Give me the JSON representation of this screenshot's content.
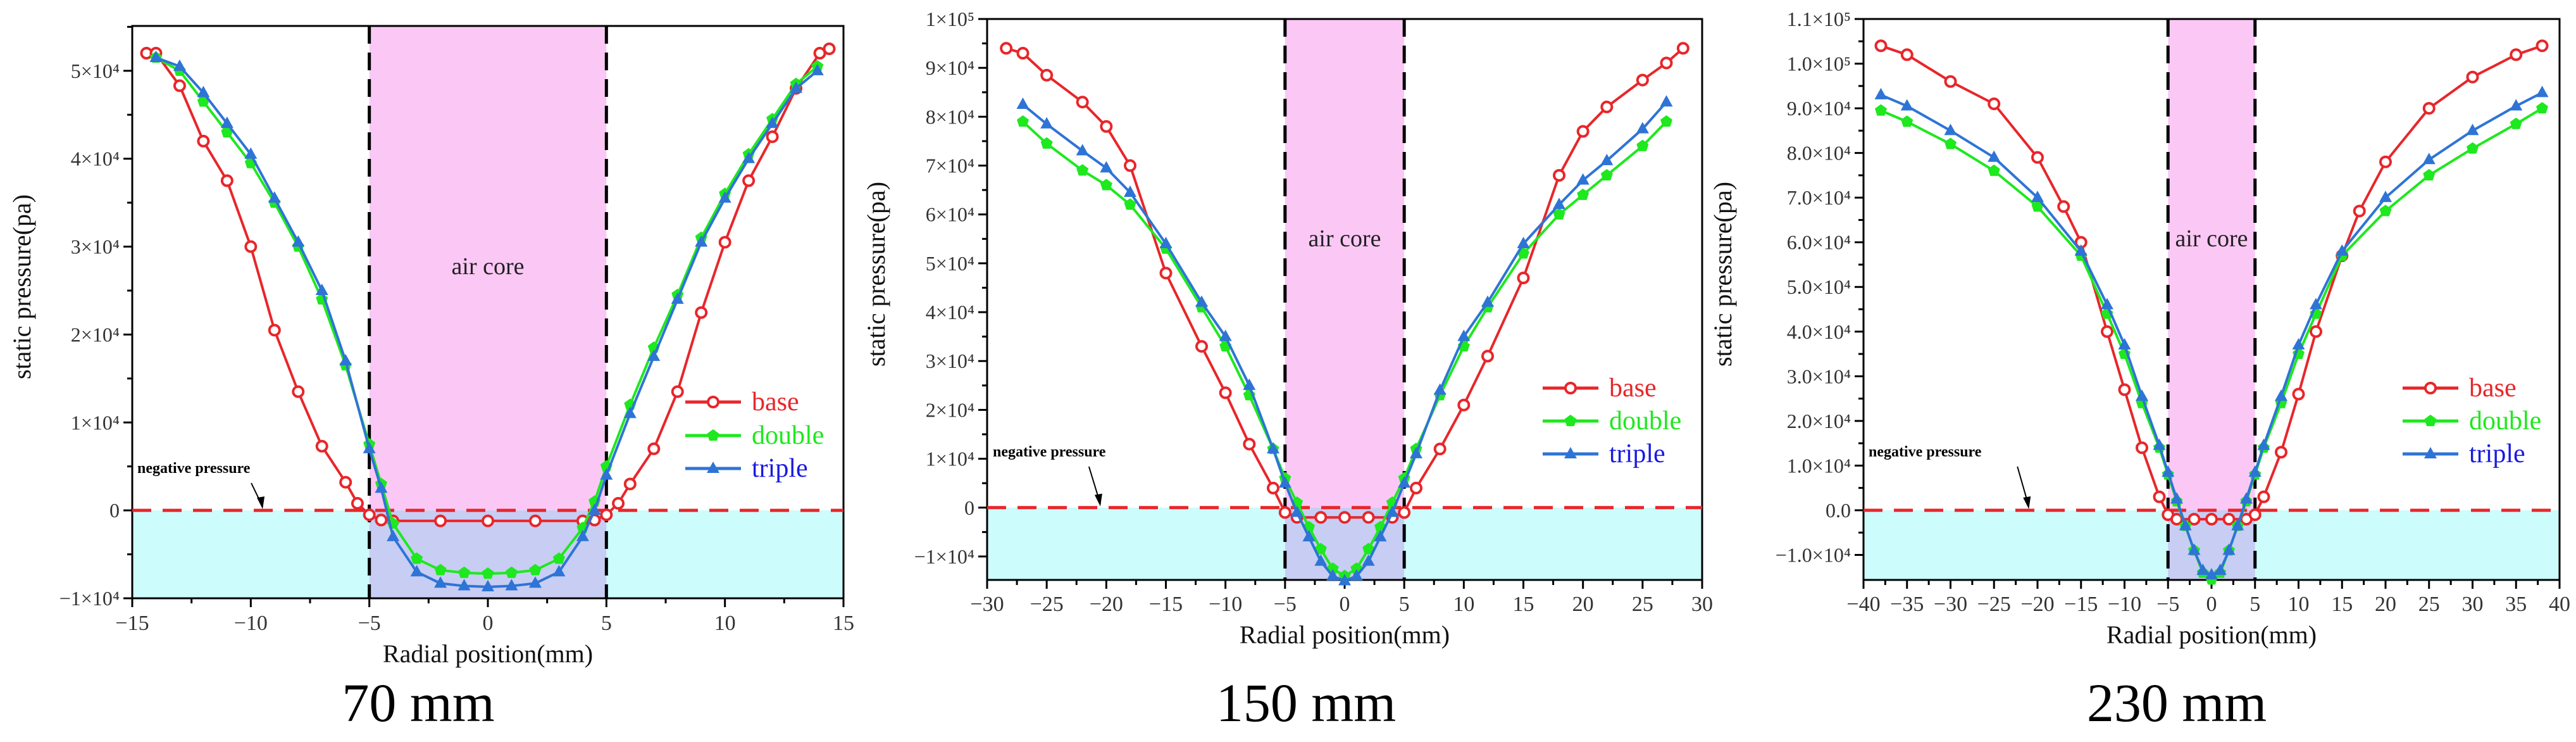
{
  "colors": {
    "base": "#e8262a",
    "double": "#1ee81e",
    "triple": "#2e74d6",
    "triple_label": "#1a1ae0",
    "air_core_fill": "#fbc8f6",
    "negative_fill": "#ccfcfc",
    "overlap_fill": "#c8cdf4",
    "zero_line": "#e8262a"
  },
  "captions": [
    "70 mm",
    "150 mm",
    "230 mm"
  ],
  "chart_data": [
    {
      "type": "line",
      "xlabel": "Radial position(mm)",
      "ylabel": "static pressure(pa)",
      "xlim": [
        -15,
        15
      ],
      "ylim": [
        -10000,
        55100
      ],
      "xticks": [
        -15,
        -10,
        -5,
        0,
        5,
        10,
        15
      ],
      "xtick_labels": [
        "−15",
        "−10",
        "−5",
        "0",
        "5",
        "10",
        "15"
      ],
      "yticks": [
        -10000,
        0,
        10000,
        20000,
        30000,
        40000,
        50000
      ],
      "ytick_labels": [
        "−1×10⁴",
        "0",
        "1×10⁴",
        "2×10⁴",
        "3×10⁴",
        "4×10⁴",
        "5×10⁴"
      ],
      "air_core": {
        "label": "air core",
        "x_range": [
          -5,
          5
        ]
      },
      "negative_pressure": {
        "label": "negative pressure",
        "arrow_x": -9.5
      },
      "legend": "right",
      "legend_labels": [
        "base",
        "double",
        "triple"
      ],
      "series": [
        {
          "name": "base",
          "marker": "circle",
          "x": [
            -14.4,
            -14,
            -13,
            -12,
            -11,
            -10,
            -9,
            -8,
            -7,
            -6,
            -5.5,
            -5,
            -4.5,
            -4,
            -2,
            0,
            2,
            4,
            4.5,
            5,
            5.5,
            6,
            7,
            8,
            9,
            10,
            11,
            12,
            13,
            14,
            14.4
          ],
          "y": [
            52000,
            52000,
            48300,
            42000,
            37500,
            30000,
            20500,
            13500,
            7300,
            3200,
            800,
            -500,
            -1100,
            -1200,
            -1200,
            -1200,
            -1200,
            -1200,
            -1100,
            -500,
            800,
            3000,
            7000,
            13500,
            22500,
            30500,
            37500,
            42500,
            48000,
            52000,
            52500
          ]
        },
        {
          "name": "double",
          "marker": "pentagon",
          "x": [
            -14,
            -13,
            -12,
            -11,
            -10,
            -9,
            -8,
            -7,
            -6,
            -5,
            -4.5,
            -4,
            -3,
            -2,
            -1,
            0,
            1,
            2,
            3,
            4,
            4.5,
            5,
            6,
            7,
            8,
            9,
            10,
            11,
            12,
            13,
            13.9
          ],
          "y": [
            51500,
            50000,
            46500,
            43000,
            39500,
            35000,
            30000,
            24000,
            16500,
            7500,
            3000,
            -1500,
            -5500,
            -6800,
            -7100,
            -7200,
            -7100,
            -6800,
            -5500,
            -2000,
            1000,
            5000,
            12000,
            18500,
            24500,
            31000,
            36000,
            40500,
            44500,
            48500,
            50500
          ]
        },
        {
          "name": "triple",
          "marker": "triangle",
          "x": [
            -14,
            -13,
            -12,
            -11,
            -10,
            -9,
            -8,
            -7,
            -6,
            -5,
            -4.5,
            -4,
            -3,
            -2,
            -1,
            0,
            1,
            2,
            3,
            4,
            4.5,
            5,
            6,
            7,
            8,
            9,
            10,
            11,
            12,
            13,
            13.9
          ],
          "y": [
            51500,
            50500,
            47500,
            44000,
            40500,
            35500,
            30500,
            25000,
            17000,
            7000,
            2500,
            -3000,
            -7000,
            -8300,
            -8600,
            -8700,
            -8600,
            -8300,
            -7000,
            -3000,
            0,
            4000,
            11000,
            17500,
            24000,
            30500,
            35500,
            40000,
            44000,
            48000,
            50000
          ]
        }
      ]
    },
    {
      "type": "line",
      "xlabel": "Radial position(mm)",
      "ylabel": "static pressure(pa)",
      "xlim": [
        -30,
        30
      ],
      "ylim": [
        -14800,
        100000
      ],
      "xticks": [
        -30,
        -25,
        -20,
        -15,
        -10,
        -5,
        0,
        5,
        10,
        15,
        20,
        25,
        30
      ],
      "xtick_labels": [
        "−30",
        "−25",
        "−20",
        "−15",
        "−10",
        "−5",
        "0",
        "5",
        "10",
        "15",
        "20",
        "25",
        "30"
      ],
      "yticks": [
        -10000,
        0,
        10000,
        20000,
        30000,
        40000,
        50000,
        60000,
        70000,
        80000,
        90000,
        100000
      ],
      "ytick_labels": [
        "−1×10⁴",
        "0",
        "1×10⁴",
        "2×10⁴",
        "3×10⁴",
        "4×10⁴",
        "5×10⁴",
        "6×10⁴",
        "7×10⁴",
        "8×10⁴",
        "9×10⁴",
        "1×10⁵"
      ],
      "air_core": {
        "label": "air core",
        "x_range": [
          -5,
          5
        ]
      },
      "negative_pressure": {
        "label": "negative pressure",
        "arrow_x": -20.5
      },
      "legend": "right",
      "legend_labels": [
        "base",
        "double",
        "triple"
      ],
      "series": [
        {
          "name": "base",
          "marker": "circle",
          "x": [
            -28.4,
            -27,
            -25,
            -22,
            -20,
            -18,
            -15,
            -12,
            -10,
            -8,
            -6,
            -5,
            -4,
            -2,
            0,
            2,
            4,
            5,
            6,
            8,
            10,
            12,
            15,
            18,
            20,
            22,
            25,
            27,
            28.4
          ],
          "y": [
            94000,
            93000,
            88500,
            83000,
            78000,
            70000,
            48000,
            33000,
            23500,
            13000,
            4000,
            -1000,
            -2000,
            -2000,
            -2000,
            -2000,
            -2000,
            -1000,
            4000,
            12000,
            21000,
            31000,
            47000,
            68000,
            77000,
            82000,
            87500,
            91000,
            94000
          ]
        },
        {
          "name": "double",
          "marker": "pentagon",
          "x": [
            -27,
            -25,
            -22,
            -20,
            -18,
            -15,
            -12,
            -10,
            -8,
            -6,
            -5,
            -4,
            -3,
            -2,
            -1,
            0,
            1,
            2,
            3,
            4,
            5,
            6,
            8,
            10,
            12,
            15,
            18,
            20,
            22,
            25,
            27
          ],
          "y": [
            79000,
            74500,
            69000,
            66000,
            62000,
            53000,
            41000,
            33000,
            23000,
            12000,
            6000,
            1000,
            -4000,
            -8500,
            -12500,
            -14000,
            -12500,
            -8500,
            -4000,
            1000,
            6000,
            12000,
            23000,
            33000,
            41000,
            52000,
            60000,
            64000,
            68000,
            74000,
            79000
          ]
        },
        {
          "name": "triple",
          "marker": "triangle",
          "x": [
            -27,
            -25,
            -22,
            -20,
            -18,
            -15,
            -12,
            -10,
            -8,
            -6,
            -5,
            -4,
            -3,
            -2,
            -1,
            0,
            1,
            2,
            3,
            4,
            5,
            6,
            8,
            10,
            12,
            15,
            18,
            20,
            22,
            25,
            27
          ],
          "y": [
            82500,
            78500,
            73000,
            69500,
            64500,
            54000,
            42000,
            35000,
            25000,
            12000,
            5000,
            -1000,
            -6000,
            -11000,
            -14000,
            -15000,
            -14000,
            -11000,
            -6000,
            -1000,
            5000,
            11000,
            24000,
            35000,
            42000,
            54000,
            62000,
            67000,
            71000,
            77500,
            83000
          ]
        }
      ]
    },
    {
      "type": "line",
      "xlabel": "Radial position(mm)",
      "ylabel": "static pressure(pa)",
      "xlim": [
        -40,
        40
      ],
      "ylim": [
        -15600,
        110000
      ],
      "xticks": [
        -40,
        -35,
        -30,
        -25,
        -20,
        -15,
        -10,
        -5,
        0,
        5,
        10,
        15,
        20,
        25,
        30,
        35,
        40
      ],
      "xtick_labels": [
        "−40",
        "−35",
        "−30",
        "−25",
        "−20",
        "−15",
        "−10",
        "−5",
        "0",
        "5",
        "10",
        "15",
        "20",
        "25",
        "30",
        "35",
        "40"
      ],
      "yticks": [
        -10000,
        0,
        10000,
        20000,
        30000,
        40000,
        50000,
        60000,
        70000,
        80000,
        90000,
        100000,
        110000
      ],
      "ytick_labels": [
        "−1.0×10⁴",
        "0.0",
        "1.0×10⁴",
        "2.0×10⁴",
        "3.0×10⁴",
        "4.0×10⁴",
        "5.0×10⁴",
        "6.0×10⁴",
        "7.0×10⁴",
        "8.0×10⁴",
        "9.0×10⁴",
        "1.0×10⁵",
        "1.1×10⁵"
      ],
      "air_core": {
        "label": "air core",
        "x_range": [
          -5,
          5
        ]
      },
      "negative_pressure": {
        "label": "negative pressure",
        "arrow_x": -21
      },
      "legend": "right",
      "legend_labels": [
        "base",
        "double",
        "triple"
      ],
      "series": [
        {
          "name": "base",
          "marker": "circle",
          "x": [
            -38,
            -35,
            -30,
            -25,
            -20,
            -17,
            -15,
            -12,
            -10,
            -8,
            -6,
            -5,
            -4,
            -2,
            0,
            2,
            4,
            5,
            6,
            8,
            10,
            12,
            15,
            17,
            20,
            25,
            30,
            35,
            38
          ],
          "y": [
            104000,
            102000,
            96000,
            91000,
            79000,
            68000,
            60000,
            40000,
            27000,
            14000,
            3000,
            -1000,
            -2000,
            -2000,
            -2000,
            -2000,
            -2000,
            -1000,
            3000,
            13000,
            26000,
            40000,
            57000,
            67000,
            78000,
            90000,
            97000,
            102000,
            104000
          ]
        },
        {
          "name": "double",
          "marker": "pentagon",
          "x": [
            -38,
            -35,
            -30,
            -25,
            -20,
            -15,
            -12,
            -10,
            -8,
            -6,
            -5,
            -4,
            -3,
            -2,
            -1,
            0,
            1,
            2,
            3,
            4,
            5,
            6,
            8,
            10,
            12,
            15,
            20,
            25,
            30,
            35,
            38
          ],
          "y": [
            89500,
            87000,
            82000,
            76000,
            68000,
            57000,
            44000,
            35000,
            24000,
            14000,
            8000,
            2000,
            -3500,
            -9000,
            -14000,
            -15500,
            -14000,
            -9000,
            -3500,
            2000,
            8000,
            14000,
            24000,
            35000,
            44000,
            57000,
            67000,
            75000,
            81000,
            86500,
            90000
          ]
        },
        {
          "name": "triple",
          "marker": "triangle",
          "x": [
            -38,
            -35,
            -30,
            -25,
            -20,
            -15,
            -12,
            -10,
            -8,
            -6,
            -5,
            -4,
            -3,
            -2,
            -1,
            0,
            1,
            2,
            3,
            4,
            5,
            6,
            8,
            10,
            12,
            15,
            20,
            25,
            30,
            35,
            38
          ],
          "y": [
            93000,
            90500,
            85000,
            79000,
            70000,
            58000,
            46000,
            37000,
            25500,
            14500,
            8500,
            2500,
            -3500,
            -9000,
            -13500,
            -14500,
            -13500,
            -9000,
            -3500,
            2500,
            8500,
            14500,
            25500,
            37000,
            46000,
            58000,
            70000,
            78500,
            85000,
            90500,
            93500
          ]
        }
      ]
    }
  ]
}
